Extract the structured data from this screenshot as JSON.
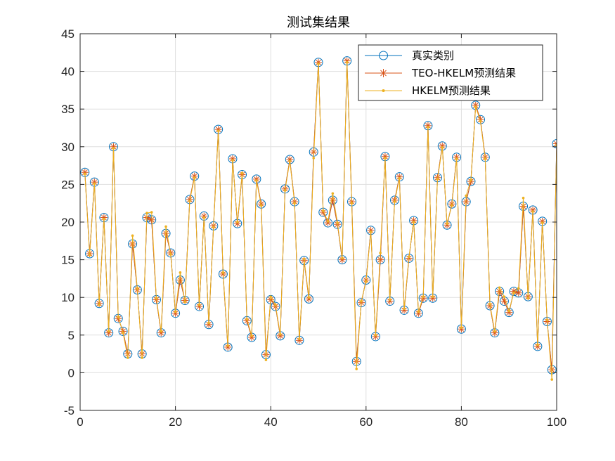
{
  "chart_data": {
    "type": "line",
    "title": "测试集结果",
    "xlabel": "",
    "ylabel": "",
    "xlim": [
      0,
      100
    ],
    "ylim": [
      -5,
      45
    ],
    "xticks": [
      0,
      20,
      40,
      60,
      80,
      100
    ],
    "yticks": [
      -5,
      0,
      5,
      10,
      15,
      20,
      25,
      30,
      35,
      40,
      45
    ],
    "xtick_labels": [
      "0",
      "20",
      "40",
      "60",
      "80",
      "100"
    ],
    "ytick_labels": [
      "-5",
      "0",
      "5",
      "10",
      "15",
      "20",
      "25",
      "30",
      "35",
      "40",
      "45"
    ],
    "grid": true,
    "legend_position": "top-right",
    "x": [
      1,
      2,
      3,
      4,
      5,
      6,
      7,
      8,
      9,
      10,
      11,
      12,
      13,
      14,
      15,
      16,
      17,
      18,
      19,
      20,
      21,
      22,
      23,
      24,
      25,
      26,
      27,
      28,
      29,
      30,
      31,
      32,
      33,
      34,
      35,
      36,
      37,
      38,
      39,
      40,
      41,
      42,
      43,
      44,
      45,
      46,
      47,
      48,
      49,
      50,
      51,
      52,
      53,
      54,
      55,
      56,
      57,
      58,
      59,
      60,
      61,
      62,
      63,
      64,
      65,
      66,
      67,
      68,
      69,
      70,
      71,
      72,
      73,
      74,
      75,
      76,
      77,
      78,
      79,
      80,
      81,
      82,
      83,
      84,
      85,
      86,
      87,
      88,
      89,
      90,
      91,
      92,
      93,
      94,
      95,
      96,
      97,
      98,
      99,
      100
    ],
    "series": [
      {
        "name": "真实类别",
        "color": "#0072BD",
        "marker": "circle",
        "values": [
          26.6,
          15.8,
          25.3,
          9.2,
          20.6,
          5.3,
          30.0,
          7.2,
          5.5,
          2.5,
          17.1,
          11.0,
          2.5,
          20.6,
          20.3,
          9.7,
          5.3,
          18.5,
          15.9,
          7.9,
          12.3,
          9.6,
          23.0,
          26.1,
          8.8,
          20.8,
          6.4,
          19.5,
          32.3,
          13.1,
          3.4,
          28.4,
          19.8,
          26.3,
          6.9,
          4.7,
          25.7,
          22.4,
          2.4,
          9.7,
          8.8,
          4.9,
          24.4,
          28.3,
          22.7,
          4.3,
          14.9,
          9.8,
          29.3,
          41.2,
          21.3,
          19.9,
          22.9,
          19.7,
          15.0,
          41.4,
          22.7,
          1.5,
          9.3,
          12.3,
          18.9,
          4.8,
          15.0,
          28.7,
          9.5,
          22.9,
          26.0,
          8.3,
          15.2,
          20.2,
          7.9,
          9.9,
          32.8,
          9.9,
          25.9,
          30.1,
          19.6,
          22.4,
          28.6,
          5.8,
          22.7,
          25.4,
          35.5,
          33.6,
          28.6,
          8.9,
          5.3,
          10.8,
          9.5,
          8.0,
          10.8,
          10.6,
          22.1,
          10.1,
          21.6,
          3.5,
          20.1,
          6.8,
          0.4,
          30.4
        ]
      },
      {
        "name": "TEO-HKELM预测结果",
        "color": "#D95319",
        "marker": "star",
        "values": [
          26.6,
          15.8,
          25.3,
          9.2,
          20.6,
          5.3,
          30.0,
          7.2,
          5.5,
          2.5,
          17.1,
          11.0,
          2.5,
          20.6,
          20.3,
          9.7,
          5.3,
          18.5,
          15.9,
          7.9,
          12.3,
          9.6,
          23.0,
          26.1,
          8.8,
          20.8,
          6.4,
          19.5,
          32.3,
          13.1,
          3.4,
          28.4,
          19.8,
          26.3,
          6.9,
          4.7,
          25.7,
          22.4,
          2.4,
          9.7,
          8.8,
          4.9,
          24.4,
          28.3,
          22.7,
          4.3,
          14.9,
          9.8,
          29.3,
          41.2,
          21.3,
          19.9,
          22.9,
          19.7,
          15.0,
          41.4,
          22.7,
          1.5,
          9.3,
          12.3,
          18.9,
          4.8,
          15.0,
          28.7,
          9.5,
          22.9,
          26.0,
          8.3,
          15.2,
          20.2,
          7.9,
          9.9,
          32.8,
          9.9,
          25.9,
          30.1,
          19.6,
          22.4,
          28.6,
          5.8,
          22.7,
          25.4,
          35.5,
          33.6,
          28.6,
          8.9,
          5.3,
          10.8,
          9.5,
          8.0,
          10.8,
          10.6,
          22.1,
          10.1,
          21.6,
          3.5,
          20.1,
          6.8,
          0.4,
          30.4
        ]
      },
      {
        "name": "HKELM预测结果",
        "color": "#EDB120",
        "marker": "point",
        "values": [
          26.4,
          15.6,
          25.1,
          9.0,
          20.4,
          5.5,
          29.8,
          7.4,
          5.3,
          2.0,
          18.2,
          11.2,
          2.0,
          21.2,
          21.3,
          9.9,
          5.5,
          19.4,
          15.7,
          8.1,
          13.3,
          9.4,
          22.8,
          25.9,
          9.0,
          20.6,
          6.6,
          19.3,
          32.1,
          13.3,
          3.6,
          28.2,
          20.0,
          26.5,
          7.1,
          4.9,
          25.5,
          22.2,
          1.7,
          10.1,
          9.0,
          5.1,
          24.2,
          28.1,
          22.5,
          4.5,
          15.1,
          10.0,
          28.5,
          41.0,
          21.5,
          20.1,
          23.8,
          19.9,
          15.2,
          41.2,
          22.5,
          0.5,
          9.5,
          12.1,
          18.7,
          5.0,
          15.9,
          28.5,
          9.7,
          22.7,
          25.8,
          8.5,
          15.4,
          20.0,
          8.1,
          10.1,
          32.6,
          10.1,
          25.7,
          29.9,
          19.8,
          22.2,
          28.4,
          6.0,
          23.5,
          25.6,
          35.3,
          33.4,
          28.4,
          9.1,
          5.5,
          11.3,
          10.1,
          8.2,
          10.6,
          11.2,
          23.2,
          9.9,
          21.4,
          3.7,
          19.9,
          7.0,
          -0.9,
          30.2
        ]
      }
    ]
  }
}
